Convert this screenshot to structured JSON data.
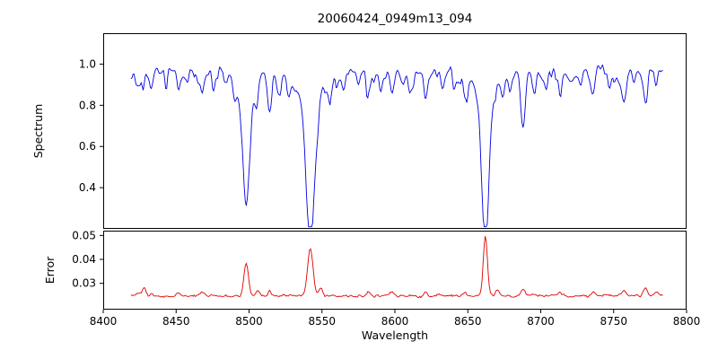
{
  "figure": {
    "title": "20060424_0949m13_094",
    "background_color": "#ffffff",
    "spine_color": "#000000",
    "text_color": "#000000"
  },
  "chart_data": [
    {
      "type": "line",
      "panel": "spectrum",
      "title": "20060424_0949m13_094",
      "xlabel": "Wavelength",
      "ylabel": "Spectrum",
      "xlim": [
        8400,
        8800
      ],
      "ylim": [
        0.2,
        1.15
      ],
      "x_ticks": [
        8400,
        8450,
        8500,
        8550,
        8600,
        8650,
        8700,
        8750,
        8800
      ],
      "y_ticks": [
        0.4,
        0.6,
        0.8,
        1.0
      ],
      "grid": false,
      "legend": "none",
      "line_color": "#0000e0",
      "data_x_range": [
        8419,
        8784
      ],
      "continuum_level": 0.96,
      "noise_amplitude": 0.035,
      "absorption_line_format": [
        "wavelength",
        "min_flux",
        "width_angstrom"
      ],
      "absorption_lines": [
        [
          8424,
          0.88,
          1.2
        ],
        [
          8428,
          0.9,
          1.0
        ],
        [
          8433,
          0.85,
          1.3
        ],
        [
          8443,
          0.88,
          1.1
        ],
        [
          8452,
          0.86,
          1.3
        ],
        [
          8458,
          0.9,
          1.0
        ],
        [
          8465,
          0.89,
          1.1
        ],
        [
          8468,
          0.85,
          1.2
        ],
        [
          8476,
          0.87,
          1.2
        ],
        [
          8490,
          0.88,
          1.1
        ],
        [
          8498,
          0.42,
          2.2
        ],
        [
          8505,
          0.89,
          1.0
        ],
        [
          8514,
          0.8,
          1.4
        ],
        [
          8520,
          0.86,
          1.2
        ],
        [
          8527,
          0.88,
          1.1
        ],
        [
          8542,
          0.28,
          2.8
        ],
        [
          8556,
          0.87,
          1.2
        ],
        [
          8565,
          0.88,
          1.1
        ],
        [
          8575,
          0.9,
          1.0
        ],
        [
          8582,
          0.85,
          1.3
        ],
        [
          8590,
          0.88,
          1.1
        ],
        [
          8598,
          0.85,
          1.3
        ],
        [
          8605,
          0.9,
          1.0
        ],
        [
          8611,
          0.86,
          1.2
        ],
        [
          8621,
          0.84,
          1.3
        ],
        [
          8633,
          0.88,
          1.1
        ],
        [
          8641,
          0.87,
          1.2
        ],
        [
          8648,
          0.85,
          1.2
        ],
        [
          8662,
          0.31,
          2.4
        ],
        [
          8674,
          0.86,
          1.2
        ],
        [
          8679,
          0.89,
          1.0
        ],
        [
          8688,
          0.7,
          1.5
        ],
        [
          8696,
          0.88,
          1.1
        ],
        [
          8704,
          0.9,
          1.0
        ],
        [
          8713,
          0.86,
          1.3
        ],
        [
          8727,
          0.89,
          1.1
        ],
        [
          8736,
          0.86,
          1.2
        ],
        [
          8747,
          0.88,
          1.1
        ],
        [
          8757,
          0.87,
          1.2
        ],
        [
          8764,
          0.9,
          1.0
        ],
        [
          8772,
          0.84,
          1.3
        ],
        [
          8779,
          0.89,
          1.0
        ]
      ]
    },
    {
      "type": "line",
      "panel": "error",
      "xlabel": "Wavelength",
      "ylabel": "Error",
      "xlim": [
        8400,
        8800
      ],
      "ylim": [
        0.019,
        0.052
      ],
      "x_ticks": [
        8400,
        8450,
        8500,
        8550,
        8600,
        8650,
        8700,
        8750,
        8800
      ],
      "y_ticks": [
        0.03,
        0.04,
        0.05
      ],
      "grid": false,
      "legend": "none",
      "line_color": "#e00000",
      "data_x_range": [
        8419,
        8784
      ],
      "baseline": 0.0245,
      "noise_amplitude": 0.0008,
      "error_peak_format": [
        "wavelength",
        "peak_error",
        "width_angstrom"
      ],
      "error_peaks": [
        [
          8424,
          0.0262,
          1.5
        ],
        [
          8428,
          0.0285,
          1.2
        ],
        [
          8433,
          0.0262,
          1.2
        ],
        [
          8452,
          0.026,
          1.2
        ],
        [
          8468,
          0.026,
          1.3
        ],
        [
          8498,
          0.038,
          1.6
        ],
        [
          8506,
          0.0272,
          1.2
        ],
        [
          8514,
          0.0262,
          1.3
        ],
        [
          8542,
          0.0445,
          1.9
        ],
        [
          8549,
          0.0275,
          1.3
        ],
        [
          8582,
          0.0262,
          1.3
        ],
        [
          8598,
          0.026,
          1.2
        ],
        [
          8621,
          0.0262,
          1.2
        ],
        [
          8648,
          0.026,
          1.2
        ],
        [
          8662,
          0.0495,
          1.4
        ],
        [
          8670,
          0.027,
          1.2
        ],
        [
          8688,
          0.0272,
          1.3
        ],
        [
          8713,
          0.0262,
          1.2
        ],
        [
          8736,
          0.026,
          1.2
        ],
        [
          8757,
          0.0272,
          1.3
        ],
        [
          8772,
          0.0278,
          1.4
        ],
        [
          8779,
          0.0265,
          1.2
        ]
      ]
    }
  ]
}
